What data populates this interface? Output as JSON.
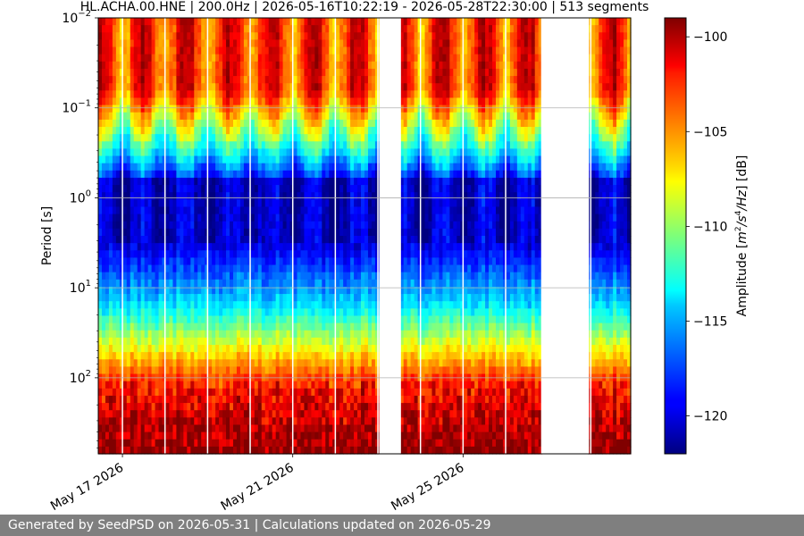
{
  "chart_data": {
    "type": "heatmap",
    "title": "HL.ACHA.00.HNE | 200.0Hz | 2026-05-16T10:22:19 - 2026-05-28T22:30:00 | 513 segments",
    "ylabel": "Period [s]",
    "y_scale": "log",
    "y_inverted": true,
    "ylim": [
      0.01,
      700
    ],
    "y_tick_labels": [
      {
        "value": 0.01,
        "base": "10",
        "exp": "−2"
      },
      {
        "value": 0.1,
        "base": "10",
        "exp": "−1"
      },
      {
        "value": 1,
        "base": "10",
        "exp": "0"
      },
      {
        "value": 10,
        "base": "10",
        "exp": "1"
      },
      {
        "value": 100,
        "base": "10",
        "exp": "2"
      }
    ],
    "x_start": "2026-05-16T10:22:19",
    "x_end": "2026-05-28T22:30:00",
    "x_tick_labels": [
      {
        "date": "2026-05-17",
        "label": "May 17 2026"
      },
      {
        "date": "2026-05-21",
        "label": "May 21 2026"
      },
      {
        "date": "2026-05-25",
        "label": "May 25 2026"
      }
    ],
    "data_gaps": [
      {
        "start": "2026-05-23T01:00:00",
        "end": "2026-05-23T13:00:00"
      },
      {
        "start": "2026-05-26T20:00:00",
        "end": "2026-05-27T23:00:00"
      }
    ],
    "grid": true,
    "colorbar": {
      "label_prefix": "Amplitude [",
      "label_unit_m": "m",
      "label_exp2": "2",
      "label_unit_s": "/s",
      "label_exp4": "4",
      "label_unit_hz": "/Hz",
      "label_suffix": "] [dB]",
      "colormap": "jet",
      "range": [
        -122,
        -99
      ],
      "ticks": [
        "−100",
        "−105",
        "−110",
        "−115",
        "−120"
      ],
      "tick_values": [
        -100,
        -105,
        -110,
        -115,
        -120
      ]
    },
    "segments": 513
  },
  "footer": {
    "text": "Generated by SeedPSD on 2026-05-31 | Calculations updated on 2026-05-29"
  }
}
